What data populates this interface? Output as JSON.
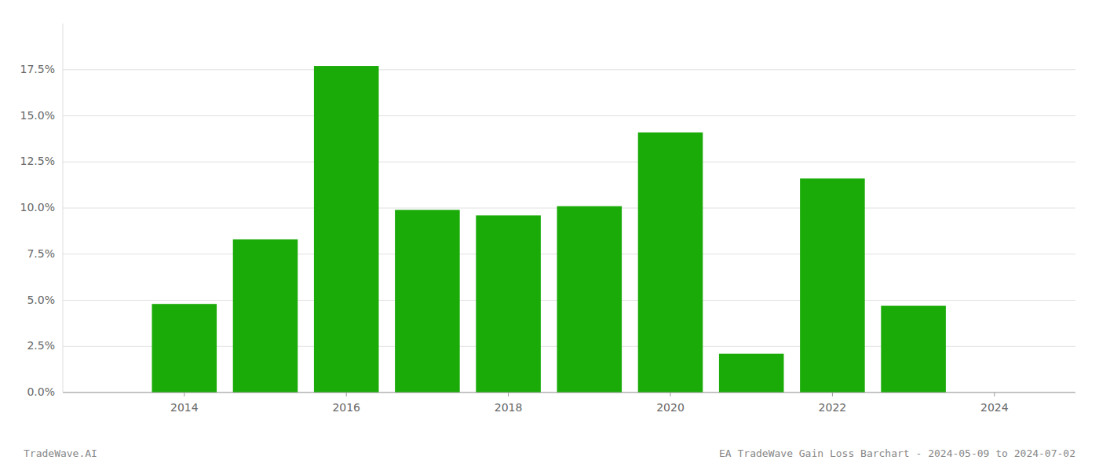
{
  "chart_data": {
    "type": "bar",
    "x": [
      2014,
      2015,
      2016,
      2017,
      2018,
      2019,
      2020,
      2021,
      2022,
      2023
    ],
    "values": [
      0.048,
      0.083,
      0.177,
      0.099,
      0.096,
      0.101,
      0.141,
      0.021,
      0.116,
      0.047
    ],
    "color": "#1aab08",
    "xlim": [
      2012.5,
      2025.0
    ],
    "xticks": [
      2014,
      2016,
      2018,
      2020,
      2022,
      2024
    ],
    "ylim": [
      0,
      0.2
    ],
    "yticks": [
      {
        "value": 0.0,
        "label": "0.0%"
      },
      {
        "value": 0.025,
        "label": "2.5%"
      },
      {
        "value": 0.05,
        "label": "5.0%"
      },
      {
        "value": 0.075,
        "label": "7.5%"
      },
      {
        "value": 0.1,
        "label": "10.0%"
      },
      {
        "value": 0.125,
        "label": "12.5%"
      },
      {
        "value": 0.15,
        "label": "15.0%"
      },
      {
        "value": 0.175,
        "label": "17.5%"
      }
    ],
    "grid": true,
    "annotations": [
      "TradeWave.AI",
      "EA TradeWave Gain Loss Barchart - 2024-05-09 to 2024-07-02"
    ]
  }
}
